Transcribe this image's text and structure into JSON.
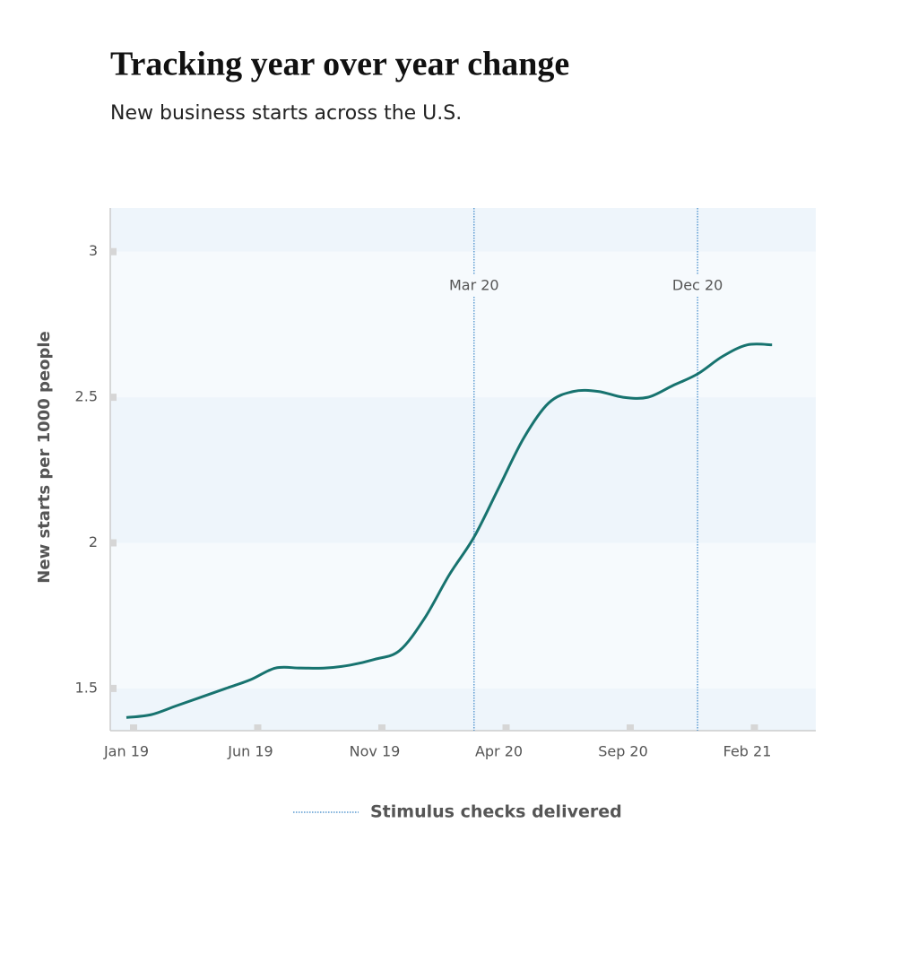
{
  "chart_data": {
    "type": "line",
    "title": "Tracking year over year change",
    "subtitle": "New business starts across the U.S.",
    "y_label": "New starts per 1000 people",
    "categories": [
      "Jan 19",
      null,
      null,
      null,
      null,
      "Jun 19",
      null,
      null,
      null,
      null,
      "Nov 19",
      null,
      null,
      null,
      null,
      "Apr 20",
      null,
      null,
      null,
      null,
      "Sep 20",
      null,
      null,
      null,
      null,
      "Feb 21",
      null
    ],
    "series": [
      {
        "name": "New starts per 1000 people",
        "color": "#17736f",
        "values": [
          1.4,
          1.41,
          1.44,
          1.47,
          1.5,
          1.53,
          1.57,
          1.57,
          1.57,
          1.58,
          1.6,
          1.63,
          1.74,
          1.89,
          2.02,
          2.19,
          2.36,
          2.48,
          2.52,
          2.52,
          2.5,
          2.5,
          2.54,
          2.58,
          2.64,
          2.68,
          2.68
        ]
      }
    ],
    "annotations": [
      {
        "label": "Mar 20",
        "at": 14
      },
      {
        "label": "Dec 20",
        "at": 23
      }
    ],
    "annotation_legend": "Stimulus checks delivered",
    "annotation_color": "#3a86c8",
    "ylim": [
      1.355,
      3.15
    ],
    "yticks": [
      1.5,
      2,
      2.5,
      3
    ],
    "bands": true
  }
}
